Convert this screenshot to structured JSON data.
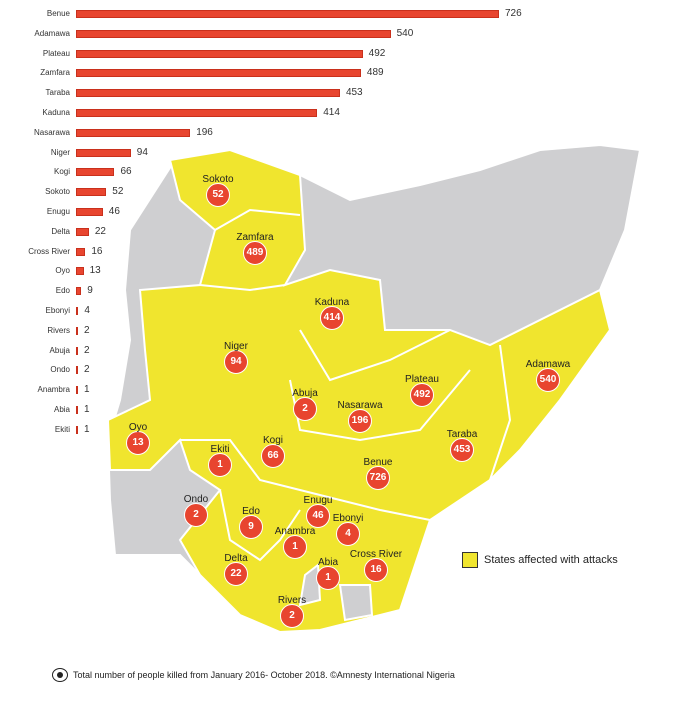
{
  "chart_data": {
    "type": "bar",
    "orientation": "horizontal",
    "title": "",
    "xlabel": "",
    "ylabel": "",
    "categories": [
      "Benue",
      "Adamawa",
      "Plateau",
      "Zamfara",
      "Taraba",
      "Kaduna",
      "Nasarawa",
      "Niger",
      "Kogi",
      "Sokoto",
      "Enugu",
      "Delta",
      "Cross River",
      "Oyo",
      "Edo",
      "Ebonyi",
      "Rivers",
      "Abuja",
      "Ondo",
      "Anambra",
      "Abia",
      "Ekiti"
    ],
    "values": [
      726,
      540,
      492,
      489,
      453,
      414,
      196,
      94,
      66,
      52,
      46,
      22,
      16,
      13,
      9,
      4,
      2,
      2,
      2,
      1,
      1,
      1
    ],
    "xlim": [
      0,
      726
    ],
    "bar_color": "#e8452f"
  },
  "map": {
    "affected_color": "#f0e52e",
    "unaffected_color": "#cfcfd1",
    "markers": [
      {
        "state": "Sokoto",
        "value": "52"
      },
      {
        "state": "Zamfara",
        "value": "489"
      },
      {
        "state": "Kaduna",
        "value": "414"
      },
      {
        "state": "Niger",
        "value": "94"
      },
      {
        "state": "Abuja",
        "value": "2"
      },
      {
        "state": "Nasarawa",
        "value": "196"
      },
      {
        "state": "Plateau",
        "value": "492"
      },
      {
        "state": "Adamawa",
        "value": "540"
      },
      {
        "state": "Taraba",
        "value": "453"
      },
      {
        "state": "Benue",
        "value": "726"
      },
      {
        "state": "Oyo",
        "value": "13"
      },
      {
        "state": "Ekiti",
        "value": "1"
      },
      {
        "state": "Kogi",
        "value": "66"
      },
      {
        "state": "Ondo",
        "value": "2"
      },
      {
        "state": "Edo",
        "value": "9"
      },
      {
        "state": "Enugu",
        "value": "46"
      },
      {
        "state": "Ebonyi",
        "value": "4"
      },
      {
        "state": "Anambra",
        "value": "1"
      },
      {
        "state": "Cross River",
        "value": "16"
      },
      {
        "state": "Delta",
        "value": "22"
      },
      {
        "state": "Abia",
        "value": "1"
      },
      {
        "state": "Rivers",
        "value": "2"
      }
    ]
  },
  "legend": {
    "label": "States affected with attacks"
  },
  "footer": {
    "text": "Total number of people killed from January 2016- October 2018. ©Amnesty International Nigeria"
  }
}
